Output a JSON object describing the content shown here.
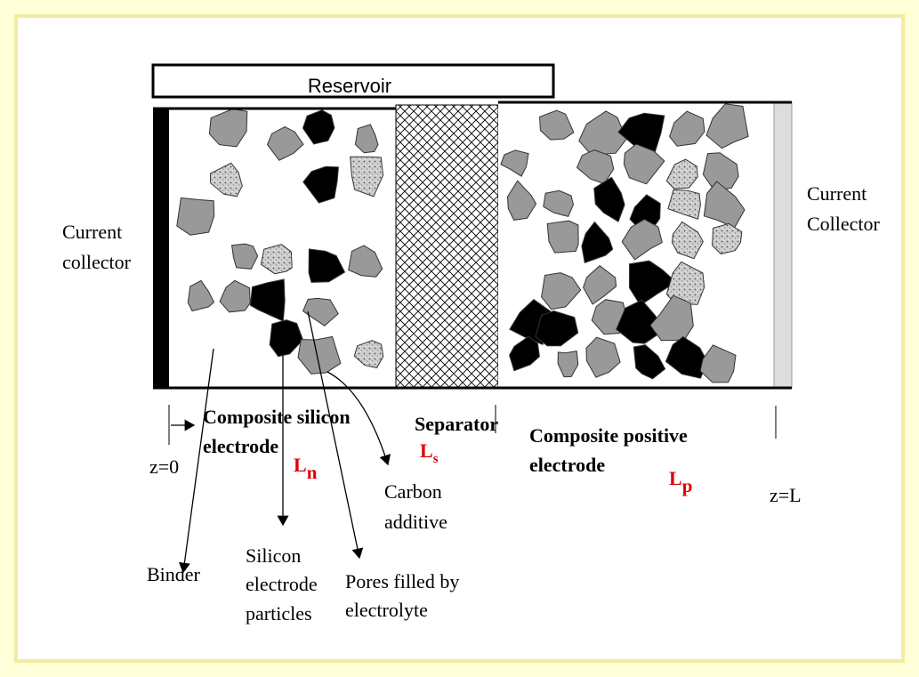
{
  "reservoir": "Reservoir",
  "left_collector": [
    "Current",
    "collector"
  ],
  "right_collector": [
    "Current",
    "Collector"
  ],
  "negative_electrode": [
    "Composite silicon",
    "electrode"
  ],
  "separator": "Separator",
  "positive_electrode": [
    "Composite positive",
    "electrode"
  ],
  "z_start": "z=0",
  "z_end": "z=L",
  "lengths": {
    "negative": {
      "symbol": "L",
      "subscript": "n"
    },
    "separator": {
      "symbol": "L",
      "subscript": "s"
    },
    "positive": {
      "symbol": "L",
      "subscript": "p"
    }
  },
  "components": {
    "carbon": [
      "Carbon",
      "additive"
    ],
    "binder": [
      "Binder"
    ],
    "silicon": [
      "Silicon",
      "electrode",
      "particles"
    ],
    "pores": [
      "Pores filled by",
      "electrolyte"
    ]
  }
}
